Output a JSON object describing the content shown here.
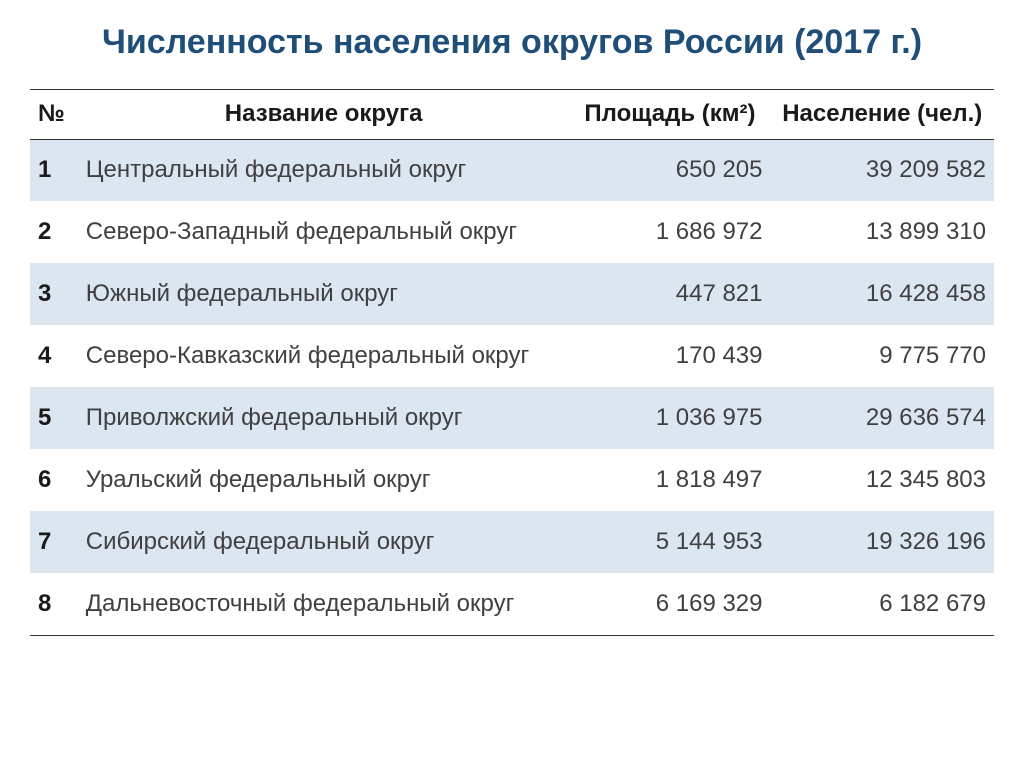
{
  "title": "Численность населения округов России (2017 г.)",
  "table": {
    "headers": {
      "num": "№",
      "name": "Название округа",
      "area": "Площадь (км²)",
      "population": "Население (чел.)"
    },
    "stripe_color": "#dce6f1",
    "border_color": "#333333",
    "header_text_color": "#1a1a1a",
    "body_text_color": "#404040",
    "title_color": "#1f4e79",
    "title_fontsize": 34,
    "body_fontsize": 24,
    "rows": [
      {
        "num": "1",
        "name": "Центральный федеральный округ",
        "area": "650 205",
        "population": "39 209 582"
      },
      {
        "num": "2",
        "name": "Северо-Западный федеральный округ",
        "area": "1 686 972",
        "population": "13 899 310"
      },
      {
        "num": "3",
        "name": "Южный федеральный округ",
        "area": "447 821",
        "population": "16 428 458"
      },
      {
        "num": "4",
        "name": "Северо-Кавказский федеральный округ",
        "area": "170 439",
        "population": "9 775 770"
      },
      {
        "num": "5",
        "name": "Приволжский федеральный округ",
        "area": "1 036 975",
        "population": "29 636 574"
      },
      {
        "num": "6",
        "name": "Уральский федеральный округ",
        "area": "1 818 497",
        "population": "12 345 803"
      },
      {
        "num": "7",
        "name": "Сибирский федеральный округ",
        "area": "5 144 953",
        "population": "19 326 196"
      },
      {
        "num": "8",
        "name": "Дальневосточный федеральный округ",
        "area": "6 169 329",
        "population": "6 182 679"
      }
    ]
  }
}
